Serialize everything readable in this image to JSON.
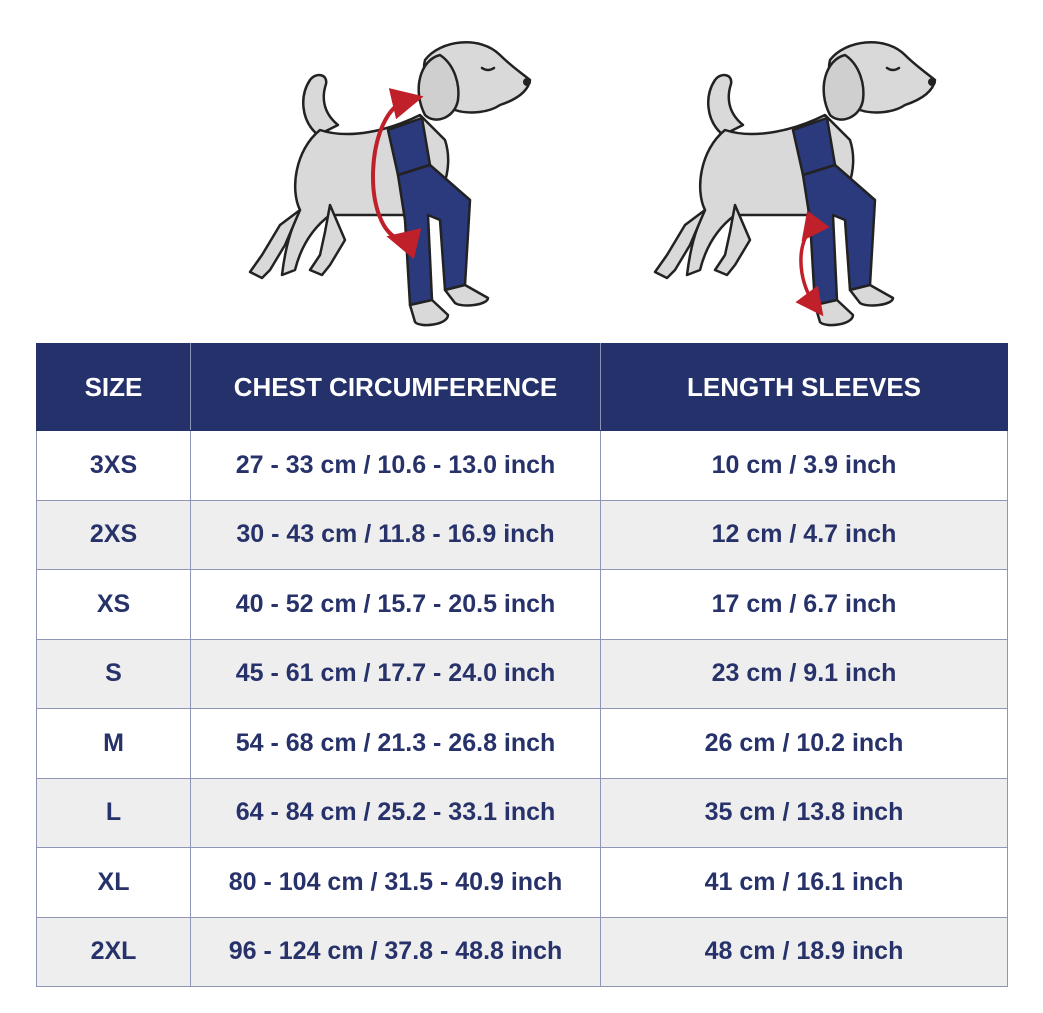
{
  "table": {
    "header": [
      "SIZE",
      "CHEST CIRCUMFERENCE",
      "LENGTH SLEEVES"
    ],
    "rows": [
      [
        "3XS",
        "27 - 33 cm / 10.6 - 13.0 inch",
        "10 cm / 3.9 inch"
      ],
      [
        "2XS",
        "30 - 43 cm / 11.8 - 16.9 inch",
        "12 cm / 4.7 inch"
      ],
      [
        "XS",
        "40 - 52 cm / 15.7 - 20.5 inch",
        "17 cm / 6.7 inch"
      ],
      [
        "S",
        "45 - 61 cm / 17.7 - 24.0 inch",
        "23 cm / 9.1 inch"
      ],
      [
        "M",
        "54 - 68 cm / 21.3 - 26.8 inch",
        "26 cm / 10.2 inch"
      ],
      [
        "L",
        "64 - 84 cm / 25.2 - 33.1 inch",
        "35 cm / 13.8 inch"
      ],
      [
        "XL",
        "80 - 104 cm / 31.5 - 40.9 inch",
        "41 cm / 16.1 inch"
      ],
      [
        "2XL",
        "96 - 124 cm / 37.8 - 48.8 inch",
        "48 cm / 18.9 inch"
      ]
    ]
  }
}
